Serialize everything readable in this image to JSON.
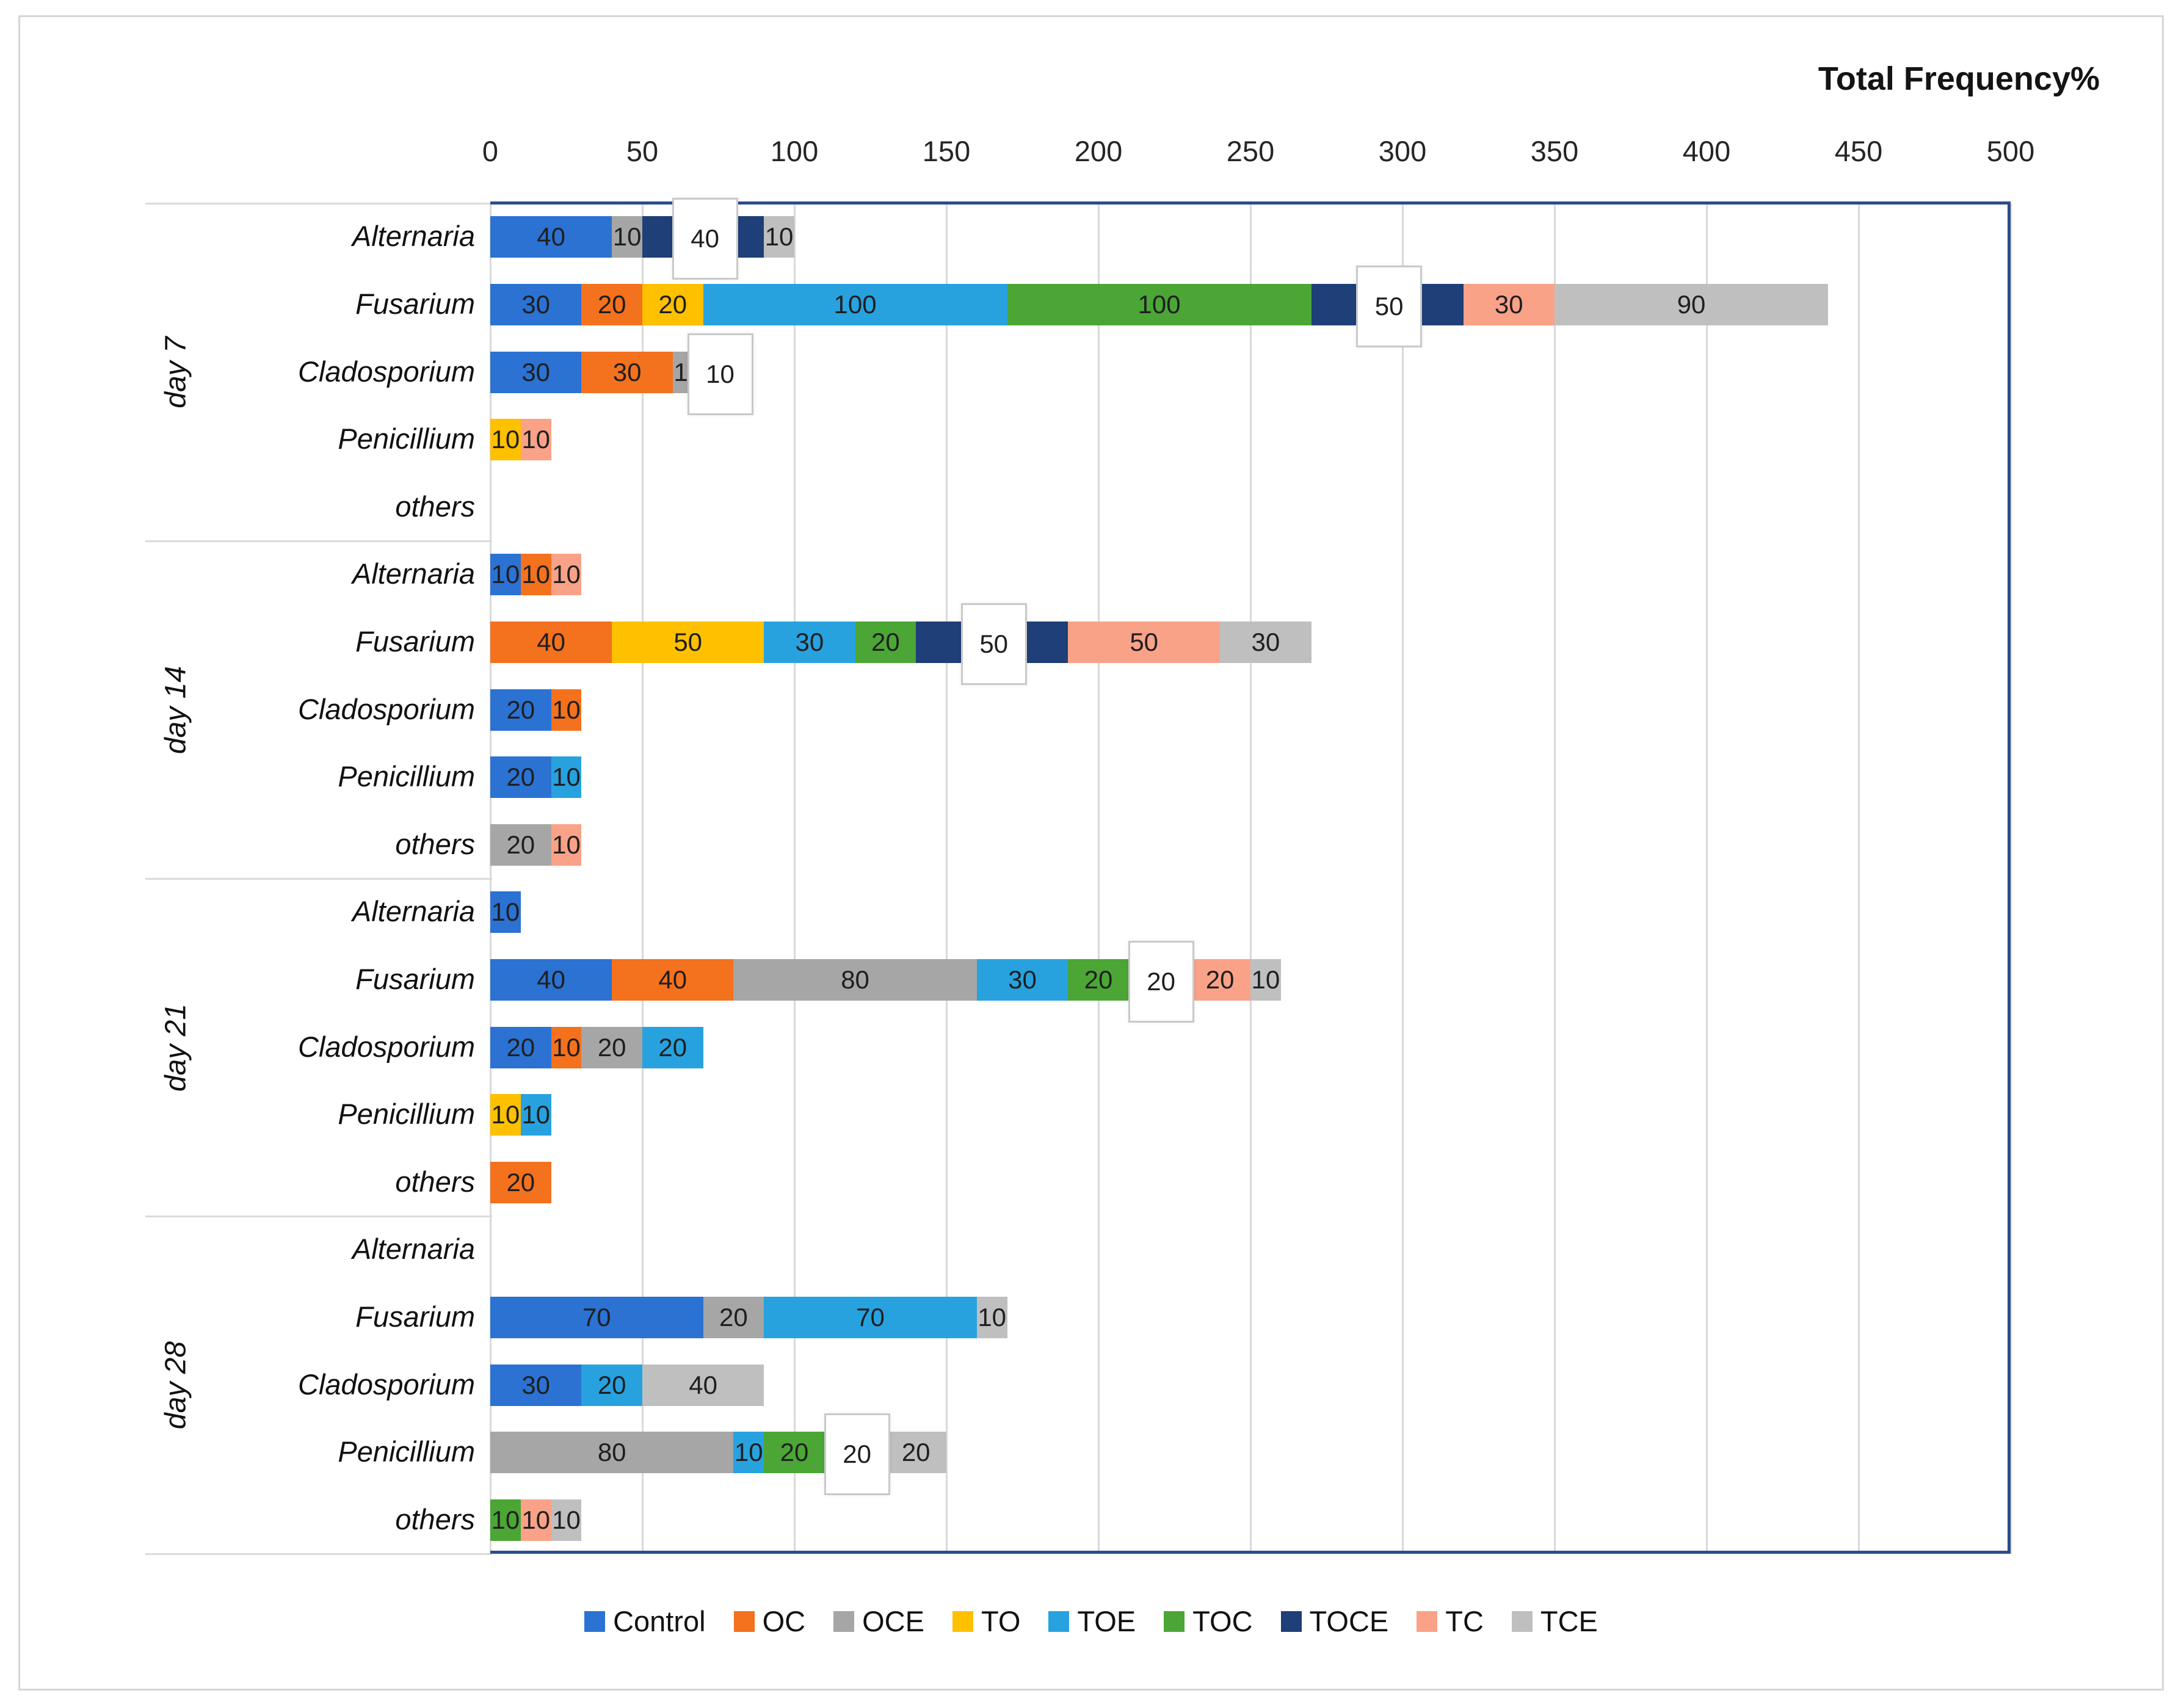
{
  "chart_data": {
    "type": "bar",
    "orientation": "horizontal-stacked",
    "title": "Total Frequency%",
    "xlabel": "",
    "ylabel": "",
    "grid": true,
    "legend_position": "bottom",
    "axis": {
      "min": 0,
      "max": 500,
      "step": 50,
      "ticks": [
        0,
        50,
        100,
        150,
        200,
        250,
        300,
        350,
        400,
        450,
        500
      ]
    },
    "series": [
      {
        "name": "Control",
        "color": "#2B72D3"
      },
      {
        "name": "OC",
        "color": "#F4711D"
      },
      {
        "name": "OCE",
        "color": "#A6A6A6"
      },
      {
        "name": "TO",
        "color": "#FFC000"
      },
      {
        "name": "TOE",
        "color": "#27A2DF"
      },
      {
        "name": "TOC",
        "color": "#4BA636"
      },
      {
        "name": "TOCE",
        "color": "#1E3F77"
      },
      {
        "name": "TC",
        "color": "#F9A287"
      },
      {
        "name": "TCE",
        "color": "#BFBFBF"
      }
    ],
    "groups": [
      {
        "label": "day 7",
        "rows": [
          {
            "category": "Alternaria",
            "segments": [
              {
                "s": "Control",
                "v": 40
              },
              {
                "s": "OCE",
                "v": 10
              },
              {
                "s": "TOCE",
                "v": 40,
                "boxed": true
              },
              {
                "s": "TCE",
                "v": 10
              }
            ]
          },
          {
            "category": "Fusarium",
            "segments": [
              {
                "s": "Control",
                "v": 30
              },
              {
                "s": "OC",
                "v": 20
              },
              {
                "s": "TO",
                "v": 20
              },
              {
                "s": "TOE",
                "v": 100
              },
              {
                "s": "TOC",
                "v": 100
              },
              {
                "s": "TOCE",
                "v": 50,
                "boxed": true
              },
              {
                "s": "TC",
                "v": 30
              },
              {
                "s": "TCE",
                "v": 90
              }
            ]
          },
          {
            "category": "Cladosporium",
            "segments": [
              {
                "s": "Control",
                "v": 30
              },
              {
                "s": "OC",
                "v": 30
              },
              {
                "s": "OCE",
                "v": 10
              },
              {
                "s": "TCE",
                "v": 10,
                "boxed": true
              }
            ]
          },
          {
            "category": "Penicillium",
            "segments": [
              {
                "s": "TO",
                "v": 10
              },
              {
                "s": "TC",
                "v": 10
              }
            ]
          },
          {
            "category": "others",
            "segments": []
          }
        ]
      },
      {
        "label": "day 14",
        "rows": [
          {
            "category": "Alternaria",
            "segments": [
              {
                "s": "Control",
                "v": 10
              },
              {
                "s": "OC",
                "v": 10
              },
              {
                "s": "TC",
                "v": 10
              }
            ]
          },
          {
            "category": "Fusarium",
            "segments": [
              {
                "s": "OC",
                "v": 40
              },
              {
                "s": "TO",
                "v": 50
              },
              {
                "s": "TOE",
                "v": 30
              },
              {
                "s": "TOC",
                "v": 20
              },
              {
                "s": "TOCE",
                "v": 50,
                "boxed": true
              },
              {
                "s": "TC",
                "v": 50
              },
              {
                "s": "TCE",
                "v": 30
              }
            ]
          },
          {
            "category": "Cladosporium",
            "segments": [
              {
                "s": "Control",
                "v": 20
              },
              {
                "s": "OC",
                "v": 10
              }
            ]
          },
          {
            "category": "Penicillium",
            "segments": [
              {
                "s": "Control",
                "v": 20
              },
              {
                "s": "TOE",
                "v": 10
              }
            ]
          },
          {
            "category": "others",
            "segments": [
              {
                "s": "OCE",
                "v": 20
              },
              {
                "s": "TC",
                "v": 10
              }
            ]
          }
        ]
      },
      {
        "label": "day 21",
        "rows": [
          {
            "category": "Alternaria",
            "segments": [
              {
                "s": "Control",
                "v": 10
              }
            ]
          },
          {
            "category": "Fusarium",
            "segments": [
              {
                "s": "Control",
                "v": 40
              },
              {
                "s": "OC",
                "v": 40
              },
              {
                "s": "OCE",
                "v": 80
              },
              {
                "s": "TOE",
                "v": 30
              },
              {
                "s": "TOC",
                "v": 20
              },
              {
                "s": "TOCE",
                "v": 20,
                "boxed": true
              },
              {
                "s": "TC",
                "v": 20
              },
              {
                "s": "TCE",
                "v": 10
              }
            ]
          },
          {
            "category": "Cladosporium",
            "segments": [
              {
                "s": "Control",
                "v": 20
              },
              {
                "s": "OC",
                "v": 10
              },
              {
                "s": "OCE",
                "v": 20
              },
              {
                "s": "TOE",
                "v": 20
              }
            ]
          },
          {
            "category": "Penicillium",
            "segments": [
              {
                "s": "TO",
                "v": 10
              },
              {
                "s": "TOE",
                "v": 10
              }
            ]
          },
          {
            "category": "others",
            "segments": [
              {
                "s": "OC",
                "v": 20
              }
            ]
          }
        ]
      },
      {
        "label": "day 28",
        "rows": [
          {
            "category": "Alternaria",
            "segments": []
          },
          {
            "category": "Fusarium",
            "segments": [
              {
                "s": "Control",
                "v": 70
              },
              {
                "s": "OCE",
                "v": 20
              },
              {
                "s": "TOE",
                "v": 70
              },
              {
                "s": "TCE",
                "v": 10
              }
            ]
          },
          {
            "category": "Cladosporium",
            "segments": [
              {
                "s": "Control",
                "v": 30
              },
              {
                "s": "TOE",
                "v": 20
              },
              {
                "s": "TCE",
                "v": 40
              }
            ]
          },
          {
            "category": "Penicillium",
            "segments": [
              {
                "s": "OCE",
                "v": 80
              },
              {
                "s": "TOE",
                "v": 10
              },
              {
                "s": "TOC",
                "v": 20
              },
              {
                "s": "TOCE",
                "v": 20,
                "boxed": true
              },
              {
                "s": "TCE",
                "v": 20
              }
            ]
          },
          {
            "category": "others",
            "segments": [
              {
                "s": "TOC",
                "v": 10
              },
              {
                "s": "TC",
                "v": 10
              },
              {
                "s": "TCE",
                "v": 10
              }
            ]
          }
        ]
      }
    ]
  },
  "colors": {
    "grid": "#d9d9d9",
    "plot_border": "#2b4d8c",
    "figure_border": "#d6d6d6"
  }
}
